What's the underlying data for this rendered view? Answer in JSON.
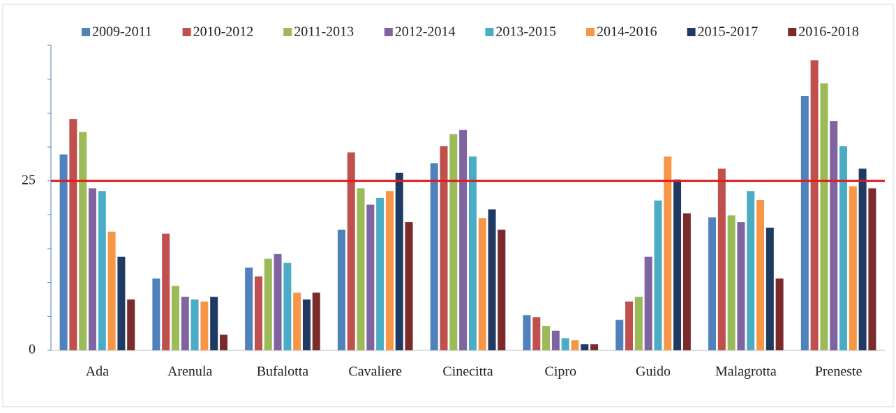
{
  "chart_data": {
    "type": "bar",
    "categories": [
      "Ada",
      "Arenula",
      "Bufalotta",
      "Cavaliere",
      "Cinecitta",
      "Cipro",
      "Guido",
      "Malagrotta",
      "Preneste"
    ],
    "series": [
      {
        "name": "2009-2011",
        "color": "#4f81bd",
        "values": [
          28.9,
          10.6,
          12.2,
          17.8,
          27.6,
          5.2,
          4.5,
          19.6,
          37.5
        ]
      },
      {
        "name": "2010-2012",
        "color": "#c0504d",
        "values": [
          34.1,
          17.2,
          10.9,
          29.2,
          30.1,
          4.9,
          7.2,
          26.8,
          42.8
        ]
      },
      {
        "name": "2011-2013",
        "color": "#9bbb59",
        "values": [
          32.2,
          9.5,
          13.5,
          23.9,
          31.9,
          3.6,
          7.9,
          19.9,
          39.4
        ]
      },
      {
        "name": "2012-2014",
        "color": "#8064a2",
        "values": [
          23.9,
          7.9,
          14.2,
          21.5,
          32.5,
          2.9,
          13.8,
          18.9,
          33.8
        ]
      },
      {
        "name": "2013-2015",
        "color": "#4bacc6",
        "values": [
          23.5,
          7.5,
          12.9,
          22.5,
          28.6,
          1.8,
          22.1,
          23.5,
          30.1
        ]
      },
      {
        "name": "2014-2016",
        "color": "#f79646",
        "values": [
          17.5,
          7.2,
          8.5,
          23.5,
          19.5,
          1.5,
          28.6,
          22.2,
          24.2
        ]
      },
      {
        "name": "2015-2017",
        "color": "#1f3b63",
        "values": [
          13.8,
          7.9,
          7.5,
          26.2,
          20.8,
          0.9,
          25.2,
          18.1,
          26.8
        ]
      },
      {
        "name": "2016-2018",
        "color": "#7b2b2b",
        "values": [
          7.5,
          2.3,
          8.5,
          18.9,
          17.8,
          0.9,
          20.2,
          10.6,
          23.9
        ]
      }
    ],
    "ylim": [
      0,
      45
    ],
    "yticks": [
      0,
      25
    ],
    "yminor_ticks": [
      5,
      10,
      15,
      20,
      30,
      35,
      40,
      45
    ],
    "hline": 25,
    "hline_color": "#e31a1c",
    "legend": "top"
  }
}
